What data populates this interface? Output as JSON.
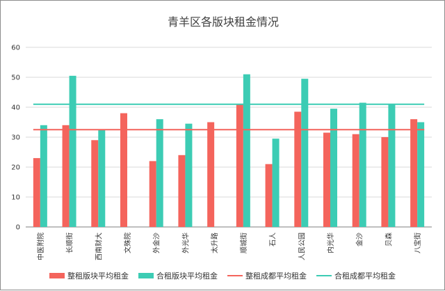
{
  "chart_data": {
    "type": "bar",
    "title": "青羊区各版块租金情况",
    "categories": [
      "中医附院",
      "长顺街",
      "西南财大",
      "文殊院",
      "外金沙",
      "外光华",
      "太升路",
      "顺城街",
      "石人",
      "人民公园",
      "内光华",
      "金沙",
      "贝森",
      "八宝街"
    ],
    "series": [
      {
        "name": "整租版块平均租金",
        "type": "bar",
        "color": "#f4645c",
        "values": [
          23,
          34,
          29,
          38,
          22,
          24,
          35,
          41,
          21,
          38.5,
          31.5,
          31,
          30,
          36
        ]
      },
      {
        "name": "合租版块平均租金",
        "type": "bar",
        "color": "#3cccb4",
        "values": [
          34,
          50.5,
          32.5,
          null,
          36,
          34.5,
          null,
          51,
          29.5,
          49.5,
          39.5,
          41.5,
          41,
          35
        ]
      },
      {
        "name": "整租成都平均租金",
        "type": "line",
        "color": "#f4645c",
        "value": 32.5
      },
      {
        "name": "合租成都平均租金",
        "type": "line",
        "color": "#3cccb4",
        "value": 41
      }
    ],
    "ylim": [
      0,
      60
    ],
    "yticks": [
      0,
      10,
      20,
      30,
      40,
      50,
      60
    ],
    "grid": true,
    "legend_position": "bottom"
  }
}
